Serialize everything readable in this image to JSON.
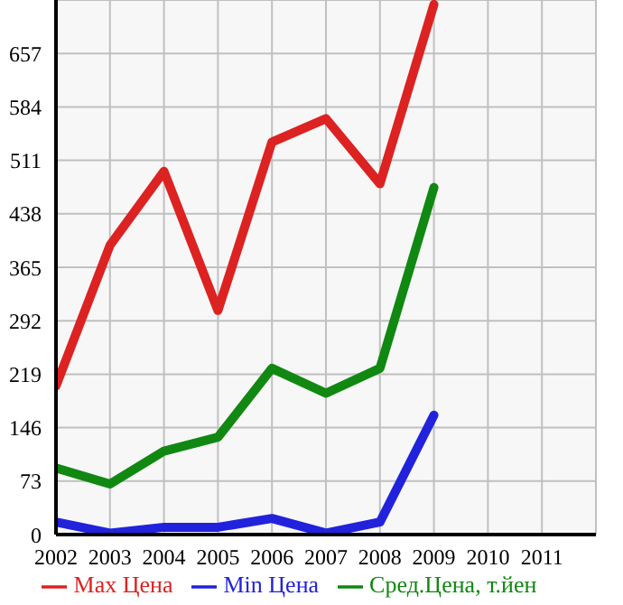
{
  "chart_data": {
    "type": "line",
    "x": [
      2002,
      2003,
      2004,
      2005,
      2006,
      2007,
      2008,
      2009
    ],
    "series": [
      {
        "name": "Max Цена",
        "color": "#dd2222",
        "values": [
          203,
          395,
          496,
          306,
          536,
          568,
          479,
          724
        ]
      },
      {
        "name": "Min Цена",
        "color": "#2222dd",
        "values": [
          17,
          2,
          10,
          10,
          22,
          2,
          17,
          163
        ]
      },
      {
        "name": "Сред.Цена, т.йен",
        "color": "#118811",
        "values": [
          91,
          69,
          114,
          133,
          227,
          193,
          227,
          474
        ]
      }
    ],
    "xlim": [
      2002,
      2012
    ],
    "xticks": [
      2002,
      2003,
      2004,
      2005,
      2006,
      2007,
      2008,
      2009,
      2010,
      2011
    ],
    "ylim": [
      0,
      730
    ],
    "yticks": [
      0,
      73,
      146,
      219,
      292,
      365,
      438,
      511,
      584,
      657
    ],
    "grid": true,
    "legend": "bottom",
    "marker": "none",
    "line_style": "solid"
  }
}
